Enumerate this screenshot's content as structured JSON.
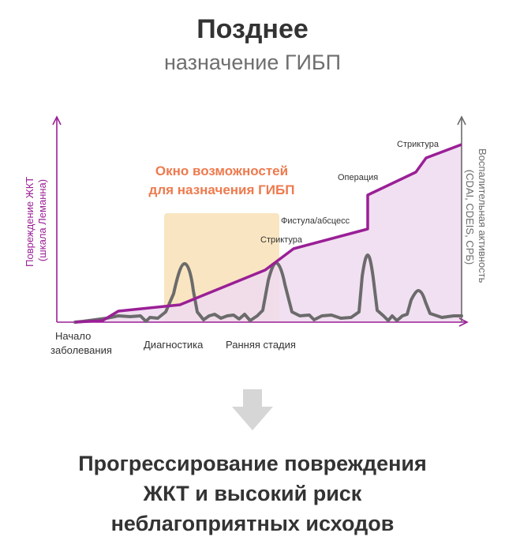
{
  "header": {
    "title": "Позднее",
    "subtitle": "назначение ГИБП"
  },
  "diagram": {
    "left_axis": {
      "line1": "Повреждение ЖКТ",
      "line2": "(шкала Леманна)"
    },
    "right_axis": {
      "line1": "Воспалительная активность",
      "line2": "(CDAI, CDEIS, СРБ)"
    },
    "window": {
      "line1": "Окно возможностей",
      "line2": "для назначения ГИБП"
    },
    "events": {
      "stricture_1": "Стриктура",
      "fistula": "Фистула/абсцесс",
      "operation": "Операция",
      "stricture_2": "Стриктура"
    },
    "x_labels": {
      "onset_line1": "Начало",
      "onset_line2": "заболевания",
      "diagnostics": "Диагностика",
      "early_stage": "Ранняя стадия"
    },
    "colors": {
      "damage_line": "#9a1f96",
      "damage_fill": "#efdcef",
      "window_fill": "#f8e1b6",
      "activity_line": "#6b6b6b",
      "window_label": "#ee7a4e",
      "arrow": "#d6d6d6"
    }
  },
  "conclusion": {
    "line1": "Прогрессирование повреждения",
    "line2": "ЖКТ и высокий риск",
    "line3": "неблагоприятных исходов"
  }
}
